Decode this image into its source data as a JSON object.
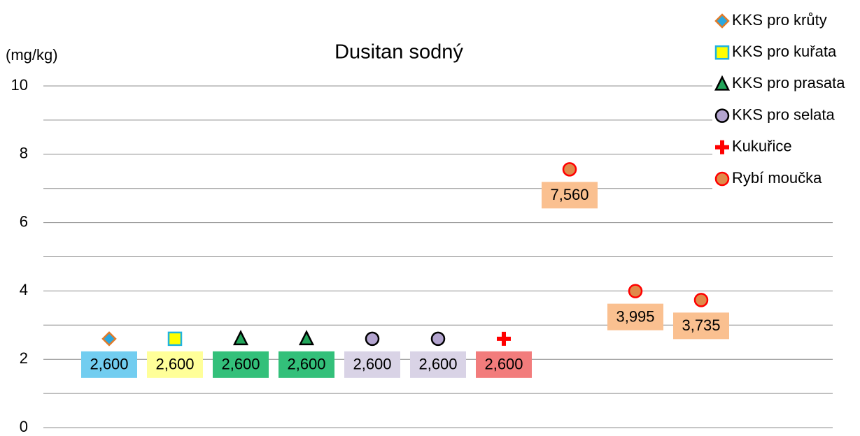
{
  "chart_data": {
    "type": "scatter",
    "title": "Dusitan sodný",
    "y_label": "(mg/kg)",
    "categories": [
      null,
      null,
      null,
      null,
      null,
      null,
      null,
      null,
      null,
      null
    ],
    "ylim": [
      0,
      10
    ],
    "yticks": [
      0,
      2,
      4,
      6,
      8,
      10
    ],
    "minor_yticks": [
      1,
      3,
      5,
      7,
      9
    ],
    "grid": true,
    "legend": "top-right",
    "series": [
      {
        "name": "KKS pro krůty",
        "color": "#29a8e0",
        "edge": "#e07b2a",
        "marker": "diamond",
        "label_color": "#72cdf0",
        "values": [
          2.6,
          null,
          null,
          null,
          null,
          null,
          null,
          null,
          null,
          null
        ],
        "value_labels": [
          "2,600",
          null,
          null,
          null,
          null,
          null,
          null,
          null,
          null,
          null
        ]
      },
      {
        "name": "KKS pro kuřata",
        "color": "#ffff00",
        "edge": "#1fb3e0",
        "marker": "square",
        "label_color": "#ffff99",
        "values": [
          null,
          2.6,
          null,
          null,
          null,
          null,
          null,
          null,
          null,
          null
        ],
        "value_labels": [
          null,
          "2,600",
          null,
          null,
          null,
          null,
          null,
          null,
          null,
          null
        ]
      },
      {
        "name": "KKS pro prasata",
        "color": "#22a55a",
        "edge": "#000000",
        "marker": "triangle",
        "label_color": "#33c07a",
        "values": [
          null,
          null,
          2.6,
          2.6,
          null,
          null,
          null,
          null,
          null,
          null
        ],
        "value_labels": [
          null,
          null,
          "2,600",
          "2,600",
          null,
          null,
          null,
          null,
          null,
          null
        ]
      },
      {
        "name": "KKS pro selata",
        "color": "#b3a4cf",
        "edge": "#000000",
        "marker": "circle",
        "label_color": "#d9d3e6",
        "values": [
          null,
          null,
          null,
          null,
          2.6,
          2.6,
          null,
          null,
          null,
          null
        ],
        "value_labels": [
          null,
          null,
          null,
          null,
          "2,600",
          "2,600",
          null,
          null,
          null,
          null
        ]
      },
      {
        "name": "Kukuřice",
        "color": "#ff0000",
        "edge": "#ff0000",
        "marker": "cross",
        "label_color": "#f27c7c",
        "values": [
          null,
          null,
          null,
          null,
          null,
          null,
          2.6,
          null,
          null,
          null
        ],
        "value_labels": [
          null,
          null,
          null,
          null,
          null,
          null,
          "2,600",
          null,
          null,
          null
        ]
      },
      {
        "name": "Rybí moučka",
        "color": "#e08a4a",
        "edge": "#ff0000",
        "marker": "circle",
        "label_color": "#fac090",
        "values": [
          null,
          null,
          null,
          null,
          null,
          null,
          null,
          7.56,
          3.995,
          3.735
        ],
        "value_labels": [
          null,
          null,
          null,
          null,
          null,
          null,
          null,
          "7,560",
          "3,995",
          "3,735"
        ]
      }
    ]
  }
}
